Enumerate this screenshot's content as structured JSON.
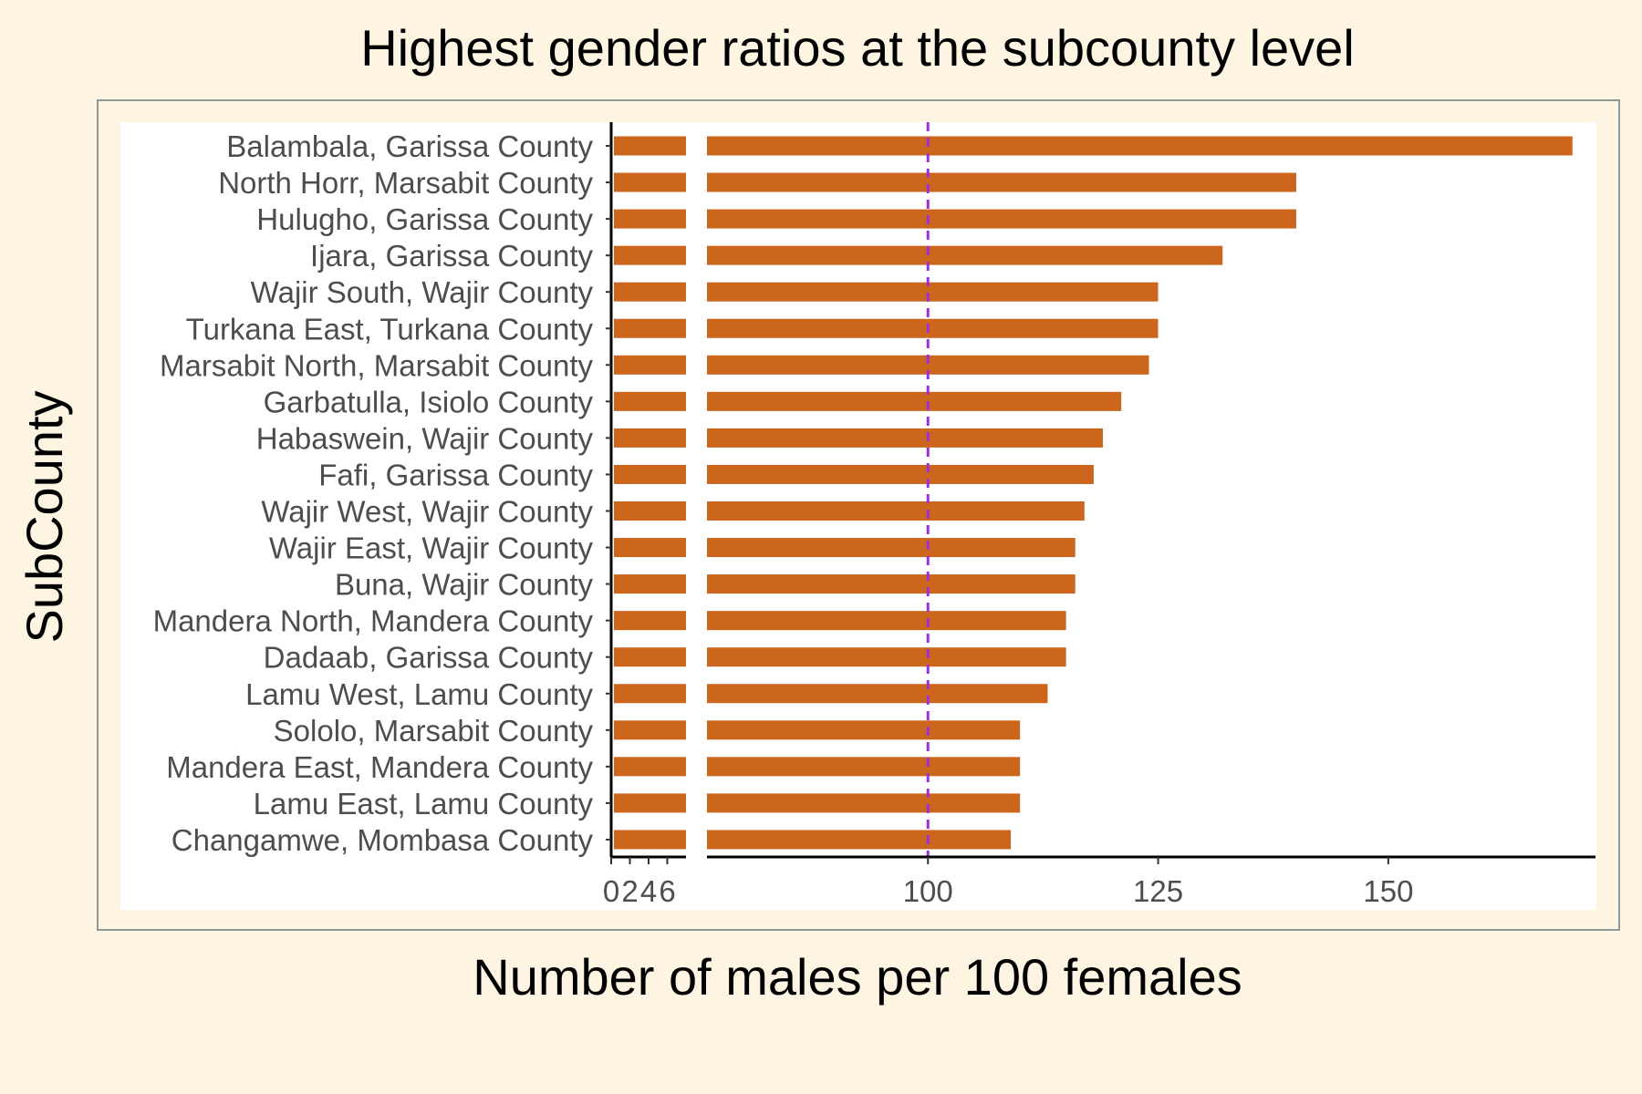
{
  "chart_data": {
    "type": "bar",
    "orientation": "horizontal",
    "title": "Highest gender ratios at the subcounty level",
    "xlabel": "Number of males per 100 females",
    "ylabel": "SubCounty",
    "categories": [
      "Balambala, Garissa County",
      "North Horr, Marsabit County",
      "Hulugho, Garissa County",
      "Ijara, Garissa County",
      "Wajir South, Wajir County",
      "Turkana East, Turkana County",
      "Marsabit North, Marsabit County",
      "Garbatulla, Isiolo County",
      "Habaswein, Wajir County",
      "Fafi, Garissa County",
      "Wajir West, Wajir County",
      "Wajir East, Wajir County",
      "Buna, Wajir County",
      "Mandera North, Mandera County",
      "Dadaab, Garissa County",
      "Lamu West, Lamu County",
      "Sololo, Marsabit County",
      "Mandera East, Mandera County",
      "Lamu East, Lamu County",
      "Changamwe, Mombasa County"
    ],
    "values": [
      170,
      140,
      140,
      132,
      125,
      125,
      124,
      121,
      119,
      118,
      117,
      116,
      116,
      115,
      115,
      113,
      110,
      110,
      110,
      109
    ],
    "axis_break": {
      "low_range": [
        0,
        8
      ],
      "high_range": [
        76,
        172.5
      ]
    },
    "xticks_low": [
      "0",
      "2",
      "4",
      "6"
    ],
    "xticks_high": [
      "100",
      "125",
      "150"
    ],
    "reference_line": {
      "x": 100,
      "style": "dashed",
      "color": "#9b30d9"
    },
    "bar_color": "#cd661d",
    "panel_background": "#ffffff",
    "plot_background": "#fdf5e2",
    "grid": false,
    "legend": "none"
  }
}
